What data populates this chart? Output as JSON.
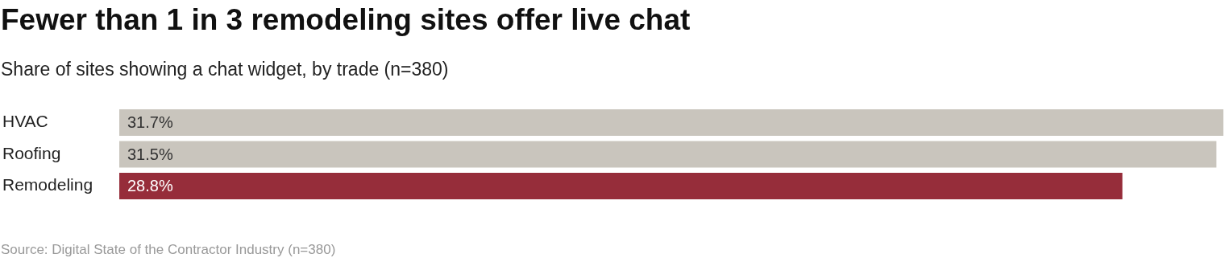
{
  "chart_data": {
    "type": "bar",
    "orientation": "horizontal",
    "title": "Fewer than 1 in 3 remodeling sites offer live chat",
    "subtitle": "Share of sites showing a chat widget, by trade (n=380)",
    "categories": [
      "HVAC",
      "Roofing",
      "Remodeling"
    ],
    "values": [
      31.7,
      31.5,
      28.8
    ],
    "colors": [
      "#c9c5bd",
      "#c9c5bd",
      "#962d3a"
    ],
    "value_labels": [
      "31.7%",
      "31.5%",
      "28.8%"
    ],
    "annotations": [
      "Source: Digital State of the Contractor Industry (n=380)"
    ]
  }
}
